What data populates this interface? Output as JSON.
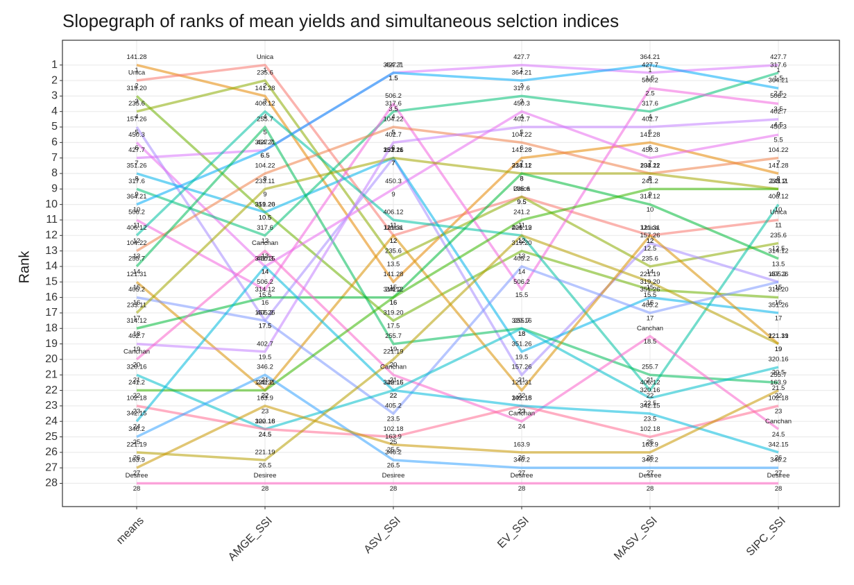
{
  "chart_data": {
    "type": "slope",
    "title": "Slopegraph of ranks of mean yields and simultaneous selction indices",
    "y_label": "Rank",
    "categories": [
      "means",
      "AMGE_SSI",
      "ASV_SSI",
      "EV_SSI",
      "MASV_SSI",
      "SIPC_SSI"
    ],
    "ylim": [
      29.5,
      -0.6
    ],
    "yticks": [
      1,
      2,
      3,
      4,
      5,
      6,
      7,
      8,
      9,
      10,
      11,
      12,
      13,
      14,
      15,
      16,
      17,
      18,
      19,
      20,
      21,
      22,
      23,
      24,
      25,
      26,
      27,
      28
    ],
    "grid": true,
    "series": [
      {
        "name": "141.28",
        "color": "#E58700",
        "values": [
          1,
          3,
          15,
          7,
          6,
          8
        ]
      },
      {
        "name": "Unica",
        "color": "#F8766D",
        "values": [
          2,
          1,
          12,
          9.5,
          12,
          11
        ]
      },
      {
        "name": "319.20",
        "color": "#6BB100",
        "values": [
          3,
          10.5,
          17.5,
          13,
          15.5,
          16
        ]
      },
      {
        "name": "235.6",
        "color": "#8BAB00",
        "values": [
          4,
          2,
          13.5,
          9.5,
          14,
          12.5
        ]
      },
      {
        "name": "157.26",
        "color": "#A58AFF",
        "values": [
          5,
          17.5,
          7,
          21,
          12.5,
          15
        ]
      },
      {
        "name": "450.3",
        "color": "#E86BEF",
        "values": [
          6,
          14,
          9,
          4,
          7,
          5.5
        ]
      },
      {
        "name": "427.7",
        "color": "#D874FC",
        "values": [
          7,
          6.5,
          1.5,
          1,
          1.5,
          1
        ]
      },
      {
        "name": "351.26",
        "color": "#00B3EB",
        "values": [
          8,
          10.5,
          7,
          19.5,
          16,
          17
        ]
      },
      {
        "name": "317.6",
        "color": "#00BF74",
        "values": [
          9,
          12,
          4,
          3,
          4,
          1.5
        ]
      },
      {
        "name": "364.21",
        "color": "#00ABF8",
        "values": [
          10,
          6.5,
          1.5,
          2,
          1,
          2.5
        ]
      },
      {
        "name": "506.2",
        "color": "#F365DE",
        "values": [
          11,
          15.5,
          3.5,
          15.5,
          2.5,
          3.5
        ]
      },
      {
        "name": "406.12",
        "color": "#00C1A2",
        "values": [
          12,
          4,
          11,
          12,
          22,
          10
        ]
      },
      {
        "name": "104.22",
        "color": "#EF7F49",
        "values": [
          13,
          8,
          5,
          6,
          8,
          7
        ]
      },
      {
        "name": "255.7",
        "color": "#00BC59",
        "values": [
          14,
          5,
          19,
          18,
          21,
          21.5
        ]
      },
      {
        "name": "121.31",
        "color": "#D89000",
        "values": [
          15,
          22,
          12,
          22,
          12,
          19
        ]
      },
      {
        "name": "405.2",
        "color": "#7C97FF",
        "values": [
          16,
          17.5,
          23.5,
          14,
          17,
          15
        ]
      },
      {
        "name": "233.11",
        "color": "#A3A500",
        "values": [
          17,
          9,
          7,
          8,
          8,
          9
        ]
      },
      {
        "name": "314.12",
        "color": "#00BA38",
        "values": [
          18,
          16,
          16,
          8,
          10,
          13.5
        ]
      },
      {
        "name": "402.7",
        "color": "#C27FFF",
        "values": [
          19,
          19.5,
          6,
          5,
          5,
          4.5
        ]
      },
      {
        "name": "Canchan",
        "color": "#FA62CA",
        "values": [
          20,
          13,
          21,
          24,
          18.5,
          24.5
        ]
      },
      {
        "name": "320.16",
        "color": "#00BDCA",
        "values": [
          21,
          24.5,
          22,
          18,
          22.5,
          20.5
        ]
      },
      {
        "name": "241.2",
        "color": "#39B600",
        "values": [
          22,
          22,
          16,
          11,
          9,
          9
        ]
      },
      {
        "name": "102.18",
        "color": "#FF6C91",
        "values": [
          23,
          24.5,
          25,
          23,
          25,
          23
        ]
      },
      {
        "name": "342.15",
        "color": "#00B9DC",
        "values": [
          24,
          14,
          22,
          23,
          23.5,
          26
        ]
      },
      {
        "name": "346.2",
        "color": "#35A2FF",
        "values": [
          25,
          21,
          26.5,
          27,
          27,
          27
        ]
      },
      {
        "name": "221.19",
        "color": "#B79F00",
        "values": [
          26,
          26.5,
          20,
          12,
          15,
          19
        ]
      },
      {
        "name": "163.9",
        "color": "#C99800",
        "values": [
          27,
          23,
          25.5,
          26,
          26,
          22
        ]
      },
      {
        "name": "Desiree",
        "color": "#FF61C3",
        "values": [
          28,
          28,
          28,
          28,
          28,
          28
        ]
      }
    ]
  }
}
